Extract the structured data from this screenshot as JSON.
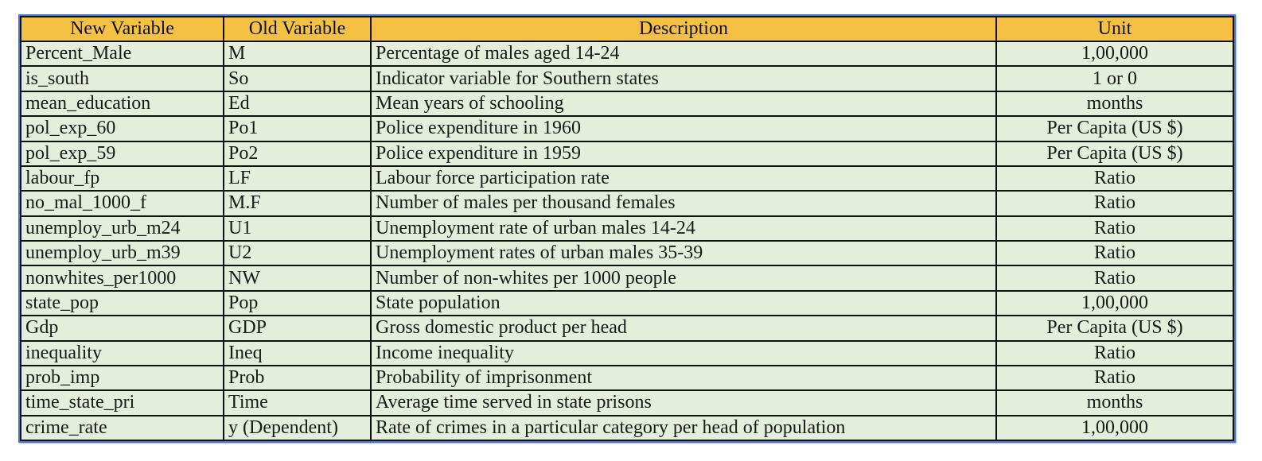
{
  "table": {
    "headers": [
      "New Variable",
      "Old Variable",
      "Description",
      "Unit"
    ],
    "rows": [
      [
        "Percent_Male",
        "M",
        "Percentage of males aged 14-24",
        "1,00,000"
      ],
      [
        "is_south",
        "So",
        "Indicator variable for Southern states",
        "1 or 0"
      ],
      [
        "mean_education",
        "Ed",
        "Mean years of schooling",
        "months"
      ],
      [
        "pol_exp_60",
        "Po1",
        "Police expenditure in 1960",
        "Per Capita (US $)"
      ],
      [
        "pol_exp_59",
        "Po2",
        "Police expenditure in 1959",
        "Per Capita (US $)"
      ],
      [
        "labour_fp",
        "LF",
        "Labour force participation rate",
        "Ratio"
      ],
      [
        "no_mal_1000_f",
        "M.F",
        "Number of males per thousand females",
        "Ratio"
      ],
      [
        "unemploy_urb_m24",
        "U1",
        "Unemployment rate of urban males 14-24",
        "Ratio"
      ],
      [
        "unemploy_urb_m39",
        "U2",
        "Unemployment rates of urban males 35-39",
        "Ratio"
      ],
      [
        "nonwhites_per1000",
        "NW",
        "Number of non-whites per 1000 people",
        "Ratio"
      ],
      [
        "state_pop",
        "Pop",
        "State population",
        "1,00,000"
      ],
      [
        "Gdp",
        "GDP",
        "Gross domestic product per head",
        "Per Capita (US $)"
      ],
      [
        "inequality",
        "Ineq",
        "Income inequality",
        "Ratio"
      ],
      [
        "prob_imp",
        "Prob",
        "Probability of imprisonment",
        "Ratio"
      ],
      [
        "time_state_pri",
        "Time",
        "Average time served in state prisons",
        "months"
      ],
      [
        "crime_rate",
        "y (Dependent)",
        "Rate of crimes in a particular category per  head of population",
        "1,00,000"
      ]
    ]
  },
  "colors": {
    "header_bg": "#f4c142",
    "row_bg": "#e3eedb",
    "frame_border": "#4a72c4",
    "grid": "#111111"
  }
}
